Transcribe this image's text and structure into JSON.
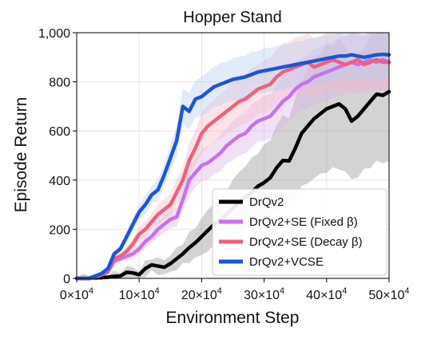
{
  "chart_data": {
    "type": "line",
    "title": "Hopper Stand",
    "xlabel": "Environment Step",
    "ylabel": "Episode Return",
    "xlim": [
      0,
      500000
    ],
    "ylim": [
      0,
      1000
    ],
    "x_ticks": [
      {
        "value": 0,
        "label": "0×10"
      },
      {
        "value": 100000,
        "label": "10×10"
      },
      {
        "value": 200000,
        "label": "20×10"
      },
      {
        "value": 300000,
        "label": "30×10"
      },
      {
        "value": 400000,
        "label": "40×10"
      },
      {
        "value": 500000,
        "label": "50×10"
      }
    ],
    "x_tick_exponent": "4",
    "y_ticks": [
      {
        "value": 0,
        "label": "0"
      },
      {
        "value": 200,
        "label": "200"
      },
      {
        "value": 400,
        "label": "400"
      },
      {
        "value": 600,
        "label": "600"
      },
      {
        "value": 800,
        "label": "800"
      },
      {
        "value": 1000,
        "label": "1,000"
      }
    ],
    "grid": true,
    "legend_position": "lower-right",
    "x": [
      0,
      10000,
      20000,
      30000,
      40000,
      50000,
      60000,
      70000,
      80000,
      90000,
      100000,
      110000,
      120000,
      130000,
      140000,
      150000,
      160000,
      170000,
      180000,
      190000,
      200000,
      210000,
      220000,
      230000,
      240000,
      250000,
      260000,
      270000,
      280000,
      290000,
      300000,
      310000,
      320000,
      330000,
      340000,
      350000,
      360000,
      370000,
      380000,
      390000,
      400000,
      410000,
      420000,
      430000,
      440000,
      450000,
      460000,
      470000,
      480000,
      490000,
      500000
    ],
    "series": [
      {
        "name": "DrQv2",
        "color": "#000000",
        "band": "#9e9e9e",
        "values": [
          0,
          0,
          0,
          2,
          3,
          5,
          8,
          10,
          25,
          22,
          15,
          40,
          55,
          50,
          45,
          60,
          80,
          100,
          125,
          145,
          170,
          195,
          220,
          240,
          260,
          285,
          310,
          330,
          350,
          375,
          390,
          410,
          450,
          480,
          478,
          530,
          590,
          620,
          650,
          670,
          690,
          700,
          710,
          690,
          640,
          660,
          690,
          720,
          750,
          745,
          760
        ]
      },
      {
        "name": "DrQv2+SE (Fixed β)",
        "color": "#c771f0",
        "band": "#d9b4f0",
        "values": [
          0,
          0,
          0,
          5,
          15,
          25,
          70,
          80,
          90,
          100,
          120,
          150,
          170,
          200,
          220,
          240,
          250,
          320,
          400,
          430,
          460,
          470,
          490,
          510,
          540,
          560,
          580,
          590,
          620,
          640,
          650,
          660,
          690,
          720,
          740,
          770,
          790,
          800,
          820,
          830,
          840,
          850,
          860,
          870,
          880,
          870,
          880,
          890,
          880,
          890,
          880
        ]
      },
      {
        "name": "DrQv2+SE (Decay β)",
        "color": "#f0607a",
        "band": "#f5b8c5",
        "values": [
          0,
          0,
          0,
          5,
          15,
          30,
          80,
          90,
          110,
          140,
          180,
          200,
          230,
          260,
          280,
          300,
          350,
          400,
          480,
          530,
          590,
          620,
          640,
          660,
          680,
          700,
          720,
          730,
          750,
          770,
          780,
          790,
          820,
          840,
          850,
          860,
          870,
          880,
          860,
          870,
          880,
          890,
          880,
          870,
          880,
          890,
          870,
          880,
          890,
          880,
          880
        ]
      },
      {
        "name": "DrQv2+VCSE",
        "color": "#1a56d8",
        "band": "#b7cdf2",
        "values": [
          0,
          0,
          0,
          10,
          20,
          40,
          100,
          120,
          170,
          220,
          270,
          300,
          340,
          360,
          420,
          490,
          560,
          700,
          680,
          730,
          740,
          760,
          780,
          790,
          800,
          810,
          815,
          820,
          830,
          840,
          845,
          850,
          855,
          860,
          865,
          870,
          875,
          880,
          885,
          890,
          895,
          900,
          905,
          905,
          910,
          905,
          900,
          905,
          910,
          912,
          910
        ]
      }
    ]
  }
}
